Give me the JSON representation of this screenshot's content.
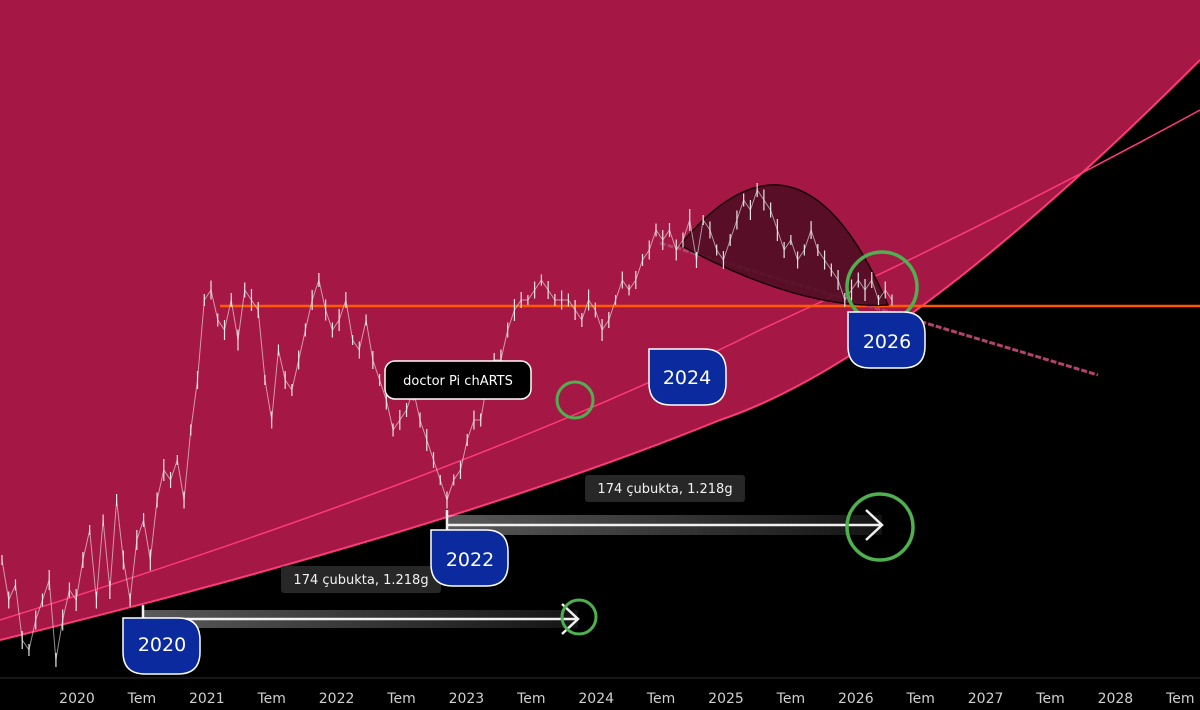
{
  "chart_data": {
    "type": "line",
    "title": "",
    "xlabel": "",
    "ylabel": "",
    "x_tick_labels": [
      "2020",
      "Tem",
      "2021",
      "Tem",
      "2022",
      "Tem",
      "2023",
      "Tem",
      "2024",
      "Tem",
      "2025",
      "Tem",
      "2026",
      "Tem",
      "2027",
      "Tem",
      "2028",
      "Tem"
    ],
    "series": [
      {
        "values": [
          560,
          600,
          585,
          640,
          650,
          620,
          600,
          580,
          660,
          620,
          590,
          600,
          560,
          530,
          600,
          520,
          590,
          500,
          560,
          600,
          540,
          520,
          560,
          500,
          470,
          480,
          460,
          500,
          430,
          380,
          300,
          290,
          320,
          330,
          300,
          340,
          290,
          300,
          310,
          380,
          420,
          350,
          380,
          390,
          360,
          330,
          300,
          280,
          310,
          330,
          320,
          300,
          340,
          350,
          320,
          360,
          380,
          400,
          430,
          420,
          410,
          390,
          420,
          440,
          460,
          480,
          500,
          480,
          470,
          440,
          420,
          420,
          380,
          360,
          360,
          330,
          310,
          300,
          300,
          290,
          280,
          290,
          300,
          300,
          300,
          310,
          320,
          300,
          310,
          330,
          320,
          300,
          280,
          290,
          280,
          260,
          250,
          230,
          240,
          230,
          250,
          240,
          220,
          260,
          220,
          230,
          250,
          260,
          240,
          220,
          200,
          210,
          190,
          200,
          210,
          230,
          250,
          240,
          260,
          250,
          230,
          250,
          260,
          270,
          280,
          300,
          290,
          280,
          290,
          280,
          300,
          290,
          300
        ]
      }
    ],
    "colors": {
      "band": "#a51845",
      "band_edge": "#ff3a7a",
      "price": "#e6e6e6",
      "resistance": "#ff5a00",
      "trend": "#b3436e",
      "circle": "#4fb04f",
      "arc": "#4a0d22",
      "bubble": "#0a2a9e"
    },
    "year_labels": [
      "2020",
      "2022",
      "2024",
      "2026"
    ],
    "bars_labels": [
      "174 çubukta, 1.218g",
      "174 çubukta, 1.218g"
    ],
    "watermark": "doctor Pi chARTS"
  }
}
